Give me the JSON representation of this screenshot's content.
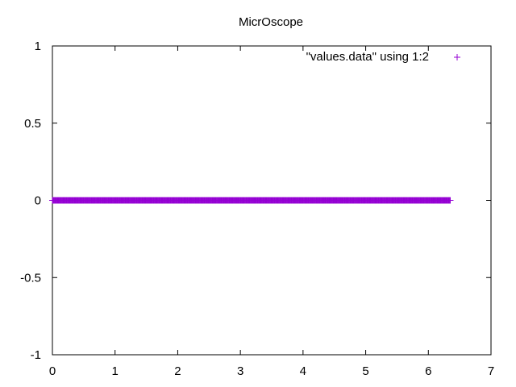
{
  "chart_data": {
    "type": "scatter",
    "title": "MicrOscope",
    "xlabel": "",
    "ylabel": "",
    "xlim": [
      0,
      7
    ],
    "ylim": [
      -1,
      1
    ],
    "x_ticks": [
      0,
      1,
      2,
      3,
      4,
      5,
      6,
      7
    ],
    "x_tick_labels": [
      "0",
      "1",
      "2",
      "3",
      "4",
      "5",
      "6",
      "7"
    ],
    "y_ticks": [
      -1,
      -0.5,
      0,
      0.5,
      1
    ],
    "y_tick_labels": [
      "-1",
      "-0.5",
      "0",
      "0.5",
      "1"
    ],
    "grid": false,
    "legend_position": "top-right",
    "series": [
      {
        "name": "\"values.data\" using 1:2",
        "color": "#9400d3",
        "marker": "plus",
        "x_start": 0,
        "x_end": 6.35,
        "x_step": 0.01,
        "y_constant": 0
      }
    ]
  }
}
